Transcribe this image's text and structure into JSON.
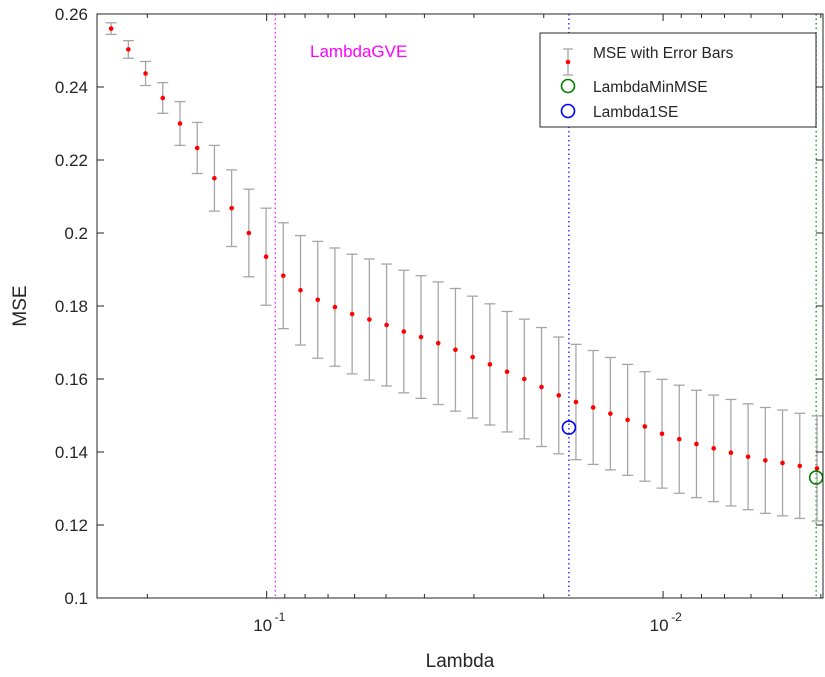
{
  "chart_data": {
    "type": "scatter",
    "xlabel": "Lambda",
    "ylabel": "MSE",
    "x_scale": "log",
    "x_direction": "reversed",
    "xlim": [
      0.2679,
      0.00395
    ],
    "ylim": [
      0.1,
      0.26
    ],
    "grid": false,
    "legend_position": "top-right",
    "x_ticks": [
      {
        "value": 0.1,
        "label_base": "10",
        "label_exp": "-1"
      },
      {
        "value": 0.01,
        "label_base": "10",
        "label_exp": "-2"
      }
    ],
    "y_ticks": [
      "0.1",
      "0.12",
      "0.14",
      "0.16",
      "0.18",
      "0.2",
      "0.22",
      "0.24",
      "0.26"
    ],
    "series": [
      {
        "name": "MSE with Error Bars",
        "marker_color": "#ff0000",
        "errorbar_color": "#a6a6a6",
        "x_start": 0.2468,
        "x_ratio": 0.90484,
        "mse": [
          0.256,
          0.2503,
          0.2437,
          0.237,
          0.23,
          0.2233,
          0.215,
          0.2068,
          0.2,
          0.1935,
          0.1883,
          0.1843,
          0.1817,
          0.1797,
          0.1778,
          0.1763,
          0.1748,
          0.173,
          0.1715,
          0.1698,
          0.168,
          0.166,
          0.164,
          0.162,
          0.16,
          0.1578,
          0.1555,
          0.1537,
          0.1522,
          0.1505,
          0.1488,
          0.147,
          0.145,
          0.1435,
          0.1422,
          0.141,
          0.1398,
          0.1387,
          0.1377,
          0.137,
          0.1362,
          0.1355,
          0.135,
          0.1345,
          0.134,
          0.1337,
          0.1334,
          0.1332,
          0.133
        ],
        "err": [
          0.0016,
          0.0024,
          0.0033,
          0.0042,
          0.006,
          0.007,
          0.009,
          0.0105,
          0.012,
          0.0133,
          0.0145,
          0.015,
          0.016,
          0.0162,
          0.0164,
          0.0166,
          0.0167,
          0.0168,
          0.0168,
          0.0168,
          0.0168,
          0.0167,
          0.0166,
          0.0165,
          0.0164,
          0.0163,
          0.016,
          0.0158,
          0.0156,
          0.0154,
          0.0152,
          0.015,
          0.0149,
          0.0148,
          0.0147,
          0.0146,
          0.0146,
          0.0145,
          0.0145,
          0.0145,
          0.0144,
          0.0144,
          0.0144,
          0.0143,
          0.0143,
          0.0143,
          0.0143,
          0.0143,
          0.0143
        ]
      },
      {
        "name": "LambdaMinMSE",
        "color": "#008000",
        "x": 0.00411,
        "y": 0.133
      },
      {
        "name": "Lambda1SE",
        "color": "#0000ff",
        "x": 0.01728,
        "y": 0.1467
      }
    ],
    "reference_lines": [
      {
        "name": "LambdaGVE",
        "x": 0.0951,
        "color": "#ff00ff",
        "label": "LambdaGVE"
      },
      {
        "name": "Lambda1SE",
        "x": 0.01728,
        "color": "#0000ff",
        "label": ""
      },
      {
        "name": "LambdaMinMSE",
        "x": 0.00411,
        "color": "#008000",
        "label": ""
      }
    ]
  }
}
